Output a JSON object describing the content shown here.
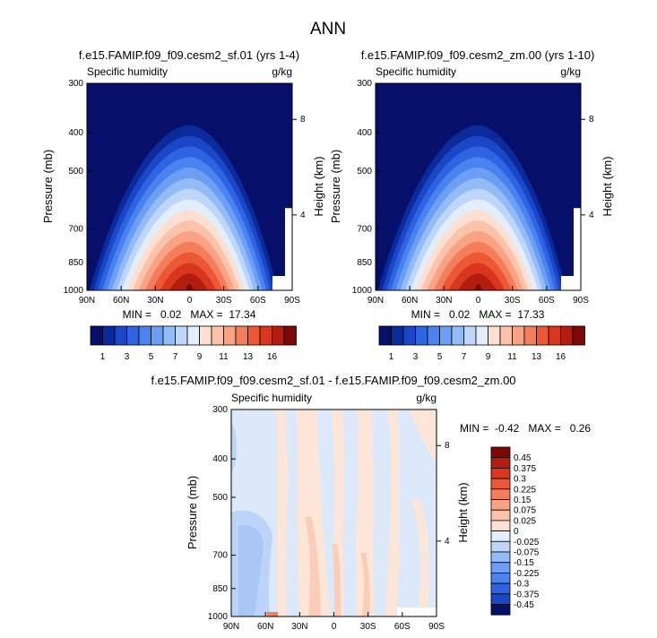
{
  "figure_title": "ANN",
  "chart_data": [
    {
      "type": "heatmap",
      "title": "f.e15.FAMIP.f09_f09.cesm2_sf.01 (yrs 1-4)",
      "left_label": "Specific humidity",
      "right_label": "g/kg",
      "ylabel": "Pressure (mb)",
      "ylabel_right": "Height (km)",
      "x_ticks": [
        "90N",
        "60N",
        "30N",
        "0",
        "30S",
        "60S",
        "90S"
      ],
      "y_ticks": [
        "300",
        "400",
        "500",
        "700",
        "850",
        "1000"
      ],
      "y_ticks_right": [
        "8",
        "4"
      ],
      "ylim": [
        1000,
        300
      ],
      "stats": "MIN =   0.02   MAX =  17.34",
      "peak_latitude": 0,
      "peak_value": 17.34
    },
    {
      "type": "heatmap",
      "title": "f.e15.FAMIP.f09_f09.cesm2_zm.00 (yrs 1-10)",
      "left_label": "Specific humidity",
      "right_label": "g/kg",
      "ylabel": "Pressure (mb)",
      "ylabel_right": "Height (km)",
      "x_ticks": [
        "90N",
        "60N",
        "30N",
        "0",
        "30S",
        "60S",
        "90S"
      ],
      "y_ticks": [
        "300",
        "400",
        "500",
        "700",
        "850",
        "1000"
      ],
      "y_ticks_right": [
        "8",
        "4"
      ],
      "ylim": [
        1000,
        300
      ],
      "stats": "MIN =   0.02   MAX =  17.33",
      "peak_latitude": 0,
      "peak_value": 17.33
    },
    {
      "type": "heatmap",
      "title": "f.e15.FAMIP.f09_f09.cesm2_sf.01 - f.e15.FAMIP.f09_f09.cesm2_zm.00",
      "left_label": "Specific humidity",
      "right_label": "g/kg",
      "ylabel": "Pressure (mb)",
      "ylabel_right": "Height (km)",
      "x_ticks": [
        "90N",
        "60N",
        "30N",
        "0",
        "30S",
        "60S",
        "90S"
      ],
      "y_ticks": [
        "300",
        "400",
        "500",
        "700",
        "850",
        "1000"
      ],
      "y_ticks_right": [
        "8",
        "4"
      ],
      "ylim": [
        1000,
        300
      ],
      "stats": "MIN =  -0.42   MAX =   0.26"
    }
  ],
  "colorbar_top": {
    "tick_labels": [
      "1",
      "3",
      "5",
      "7",
      "9",
      "11",
      "13",
      "16"
    ],
    "colors": [
      "#06106a",
      "#0b2a9c",
      "#1a47c8",
      "#2f63e2",
      "#4a82f0",
      "#6c9ff3",
      "#93bcf6",
      "#bdd6f9",
      "#e2eefc",
      "#fde0d2",
      "#fbc3aa",
      "#f8a384",
      "#f47e5b",
      "#ec5735",
      "#d8361f",
      "#b31d10",
      "#7e0708"
    ]
  },
  "colorbar_diff": {
    "tick_labels": [
      "0.45",
      "0.375",
      "0.3",
      "0.225",
      "0.15",
      "0.075",
      "0.025",
      "0",
      "-0.025",
      "-0.075",
      "-0.15",
      "-0.225",
      "-0.3",
      "-0.375",
      "-0.45"
    ],
    "colors": [
      "#7e0708",
      "#b31d10",
      "#d8361f",
      "#ec5735",
      "#f47e5b",
      "#f8a384",
      "#fbc3aa",
      "#fde0d2",
      "#e2eefc",
      "#bdd6f9",
      "#93bcf6",
      "#6c9ff3",
      "#4a82f0",
      "#2f63e2",
      "#1a47c8",
      "#06106a"
    ]
  }
}
